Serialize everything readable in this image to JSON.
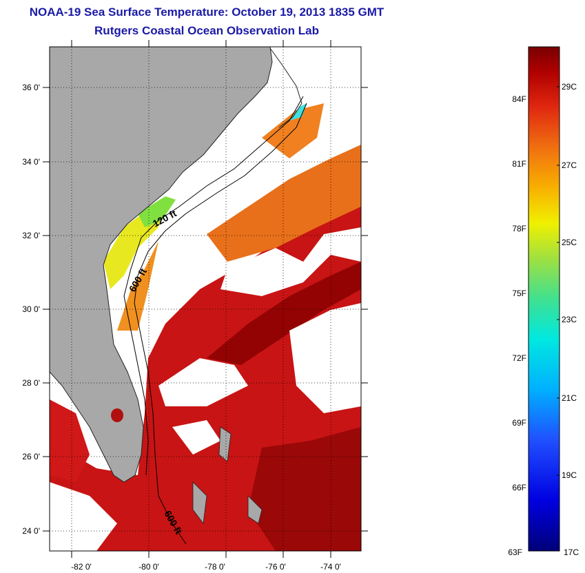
{
  "title_line1": "NOAA-19 Sea Surface Temperature:  October 19, 2013 1835 GMT",
  "title_line2": "Rutgers Coastal Ocean Observation Lab",
  "lat_labels": [
    "36 0'",
    "34 0'",
    "32 0'",
    "30 0'",
    "28 0'",
    "26 0'",
    "24 0'"
  ],
  "lon_labels": [
    "-82 0'",
    "-80 0'",
    "-78 0'",
    "-76 0'",
    "-74 0'"
  ],
  "contour_labels": [
    "120 ft",
    "600 ft",
    "600 ft"
  ],
  "colorbar": {
    "fahrenheit_labels": [
      "84F",
      "81F",
      "78F",
      "75F",
      "72F",
      "69F",
      "66F",
      "63F"
    ],
    "celsius_labels": [
      "29C",
      "27C",
      "25C",
      "23C",
      "21C",
      "19C",
      "17C"
    ]
  },
  "colors": {
    "land": "#a8a8a8",
    "cloud": "#ffffff",
    "title": "#1a1aa6",
    "warm_red": "#c81414",
    "dark_red": "#8a0000",
    "orange": "#e8701a",
    "yellow": "#e8e820",
    "green": "#80e040",
    "cyan": "#40e0e0"
  }
}
